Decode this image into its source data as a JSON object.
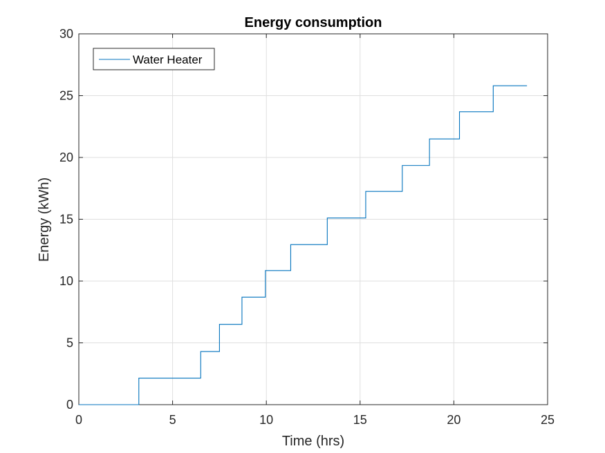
{
  "chart_data": {
    "type": "line",
    "title": "Energy consumption",
    "xlabel": "Time (hrs)",
    "ylabel": "Energy  (kWh)",
    "xlim": [
      0,
      25
    ],
    "ylim": [
      0,
      30
    ],
    "xticks": [
      0,
      5,
      10,
      15,
      20,
      25
    ],
    "yticks": [
      0,
      5,
      10,
      15,
      20,
      25,
      30
    ],
    "grid": true,
    "legend_position": "top-left",
    "series": [
      {
        "name": "Water Heater",
        "color": "#0072BD",
        "step": true,
        "x": [
          0,
          3.2,
          6.5,
          7.5,
          8.7,
          9.95,
          11.3,
          13.25,
          15.3,
          17.25,
          18.7,
          20.3,
          22.1,
          23.9
        ],
        "y": [
          0,
          2.15,
          4.3,
          6.5,
          8.7,
          10.85,
          12.95,
          15.1,
          17.25,
          19.35,
          21.5,
          23.7,
          25.8,
          25.8
        ]
      }
    ]
  }
}
